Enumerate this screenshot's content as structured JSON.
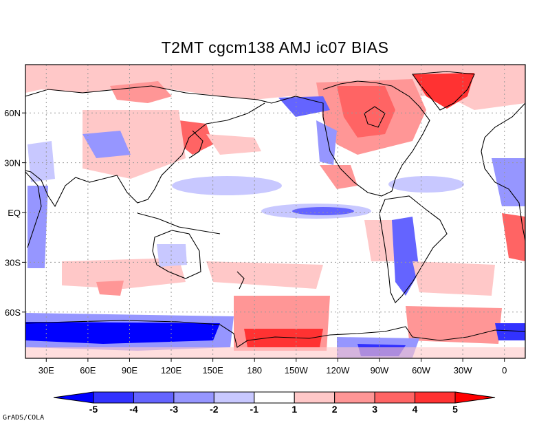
{
  "title": "T2MT cgcm138 AMJ ic07 BIAS",
  "credit": "GrADS/COLA",
  "map": {
    "lat_ticks": [
      "60N",
      "30N",
      "EQ",
      "30S",
      "60S"
    ],
    "lon_ticks": [
      "30E",
      "60E",
      "90E",
      "120E",
      "150E",
      "180",
      "150W",
      "120W",
      "90W",
      "60W",
      "30W",
      "0"
    ],
    "grid": true,
    "central_longitude": 180
  },
  "colorbar": {
    "labels": [
      "-5",
      "-4",
      "-3",
      "-2",
      "-1",
      "1",
      "2",
      "3",
      "4",
      "5"
    ],
    "colors": [
      "#0000ff",
      "#3232ff",
      "#6464ff",
      "#9696ff",
      "#c8c8ff",
      "#ffffff",
      "#ffc8c8",
      "#ff9696",
      "#ff6464",
      "#ff3232",
      "#ff0000"
    ]
  },
  "colors": {
    "blue_strong": "#0000ff",
    "blue_mid": "#6464ff",
    "blue_light": "#c8c8ff",
    "red_light": "#ffc8c8",
    "red_mid": "#ff9696",
    "red_strong": "#ff0000"
  }
}
